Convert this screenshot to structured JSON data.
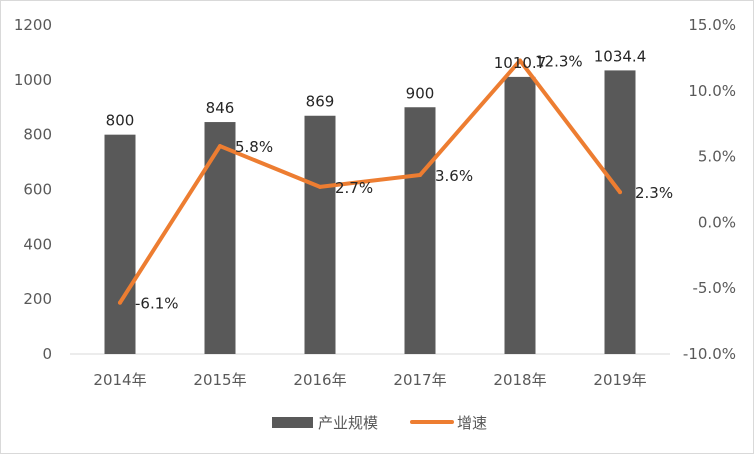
{
  "chart_data": {
    "type": "bar",
    "categories": [
      "2014年",
      "2015年",
      "2016年",
      "2017年",
      "2018年",
      "2019年"
    ],
    "series": [
      {
        "name": "产业规模",
        "type": "bar",
        "axis": "left",
        "values": [
          800,
          846,
          869,
          900,
          1010.7,
          1034.4
        ],
        "labels": [
          "800",
          "846",
          "869",
          "900",
          "1010.7",
          "1034.4"
        ],
        "color": "#595959"
      },
      {
        "name": "增速",
        "type": "line",
        "axis": "right",
        "values": [
          -6.1,
          5.8,
          2.7,
          3.6,
          12.3,
          2.3
        ],
        "labels": [
          "-6.1%",
          "5.8%",
          "2.7%",
          "3.6%",
          "12.3%",
          "2.3%"
        ],
        "color": "#ed7d31"
      }
    ],
    "y_left": {
      "min": 0,
      "max": 1200,
      "ticks": [
        "0",
        "200",
        "400",
        "600",
        "800",
        "1000",
        "1200"
      ]
    },
    "y_right": {
      "min": -10,
      "max": 15,
      "ticks": [
        "-10.0%",
        "-5.0%",
        "0.0%",
        "5.0%",
        "10.0%",
        "15.0%"
      ]
    },
    "title": "",
    "xlabel": "",
    "ylabel": "",
    "grid": false,
    "legend": "bottom"
  }
}
